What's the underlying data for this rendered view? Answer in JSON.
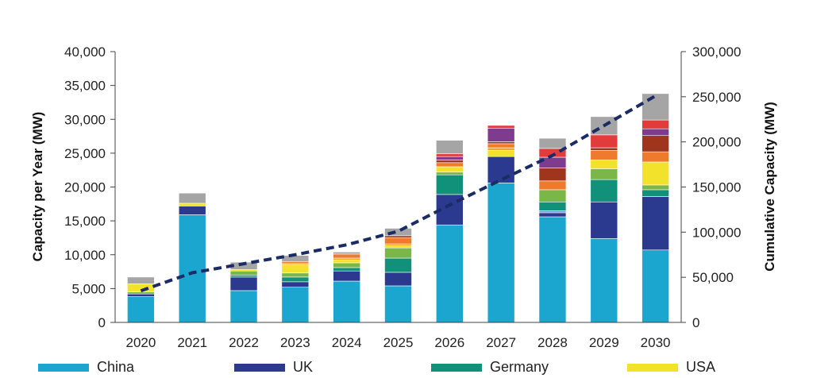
{
  "chart_data": {
    "type": "bar",
    "stacked": true,
    "categories": [
      "2020",
      "2021",
      "2022",
      "2023",
      "2024",
      "2025",
      "2026",
      "2027",
      "2028",
      "2029",
      "2030"
    ],
    "ylabel": "Capacity per Year (MW)",
    "y2label": "Cumulative Capacity (MW)",
    "ylim": [
      0,
      40000
    ],
    "y2lim": [
      0,
      300000
    ],
    "yticks": [
      "0",
      "5,000",
      "10,000",
      "15,000",
      "20,000",
      "25,000",
      "30,000",
      "35,000",
      "40,000"
    ],
    "y2ticks": [
      "0",
      "50,000",
      "100,000",
      "150,000",
      "200,000",
      "250,000",
      "300,000"
    ],
    "legend_position": "bottom",
    "legend": [
      "China",
      "UK",
      "Germany",
      "USA"
    ],
    "series": [
      {
        "name": "China",
        "color": "#1aa6cf",
        "values": [
          3800,
          15900,
          4700,
          5200,
          6100,
          5400,
          14400,
          20600,
          15600,
          12400,
          10700
        ]
      },
      {
        "name": "UK",
        "color": "#2b3a8f",
        "values": [
          400,
          1300,
          2000,
          800,
          1500,
          2000,
          4500,
          3900,
          600,
          5400,
          7900
        ]
      },
      {
        "name": "",
        "color": "#6f8fcf",
        "values": [
          0,
          0,
          0,
          0,
          0,
          0,
          0,
          0,
          300,
          0,
          0
        ]
      },
      {
        "name": "Germany",
        "color": "#12917a",
        "values": [
          0,
          0,
          300,
          700,
          500,
          2100,
          2900,
          0,
          1300,
          3300,
          1000
        ]
      },
      {
        "name": "",
        "color": "#7ab648",
        "values": [
          300,
          0,
          600,
          600,
          700,
          1500,
          400,
          0,
          1800,
          1600,
          700
        ]
      },
      {
        "name": "USA",
        "color": "#f2e22c",
        "values": [
          1200,
          400,
          200,
          1200,
          400,
          300,
          800,
          900,
          0,
          1300,
          3400
        ]
      },
      {
        "name": "",
        "color": "#f6a623",
        "values": [
          0,
          0,
          0,
          200,
          300,
          300,
          0,
          400,
          0,
          0,
          0
        ]
      },
      {
        "name": "",
        "color": "#ee7a2e",
        "values": [
          0,
          0,
          0,
          300,
          600,
          900,
          600,
          600,
          1300,
          1400,
          1500
        ]
      },
      {
        "name": "",
        "color": "#a0351e",
        "values": [
          0,
          0,
          0,
          0,
          0,
          300,
          400,
          300,
          1900,
          400,
          2400
        ]
      },
      {
        "name": "",
        "color": "#7f3c8f",
        "values": [
          0,
          0,
          0,
          0,
          0,
          0,
          500,
          2000,
          1600,
          0,
          1000
        ]
      },
      {
        "name": "",
        "color": "#e23b3b",
        "values": [
          0,
          0,
          0,
          0,
          0,
          0,
          400,
          400,
          1300,
          1900,
          1300
        ]
      },
      {
        "name": "",
        "color": "#a5a5a5",
        "values": [
          1000,
          1500,
          1100,
          900,
          300,
          1100,
          2000,
          0,
          1500,
          2700,
          3900
        ]
      }
    ],
    "cumulative": {
      "color": "#1a2b66",
      "values": [
        35000,
        55000,
        65000,
        75000,
        86000,
        101000,
        130000,
        158000,
        185000,
        218000,
        251000
      ]
    }
  }
}
